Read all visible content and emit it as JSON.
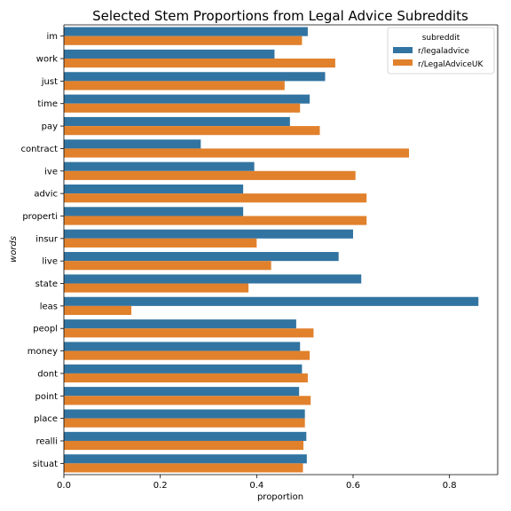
{
  "chart_data": {
    "type": "bar",
    "orientation": "horizontal",
    "title": "Selected Stem Proportions from Legal Advice Subreddits",
    "xlabel": "proportion",
    "ylabel": "words",
    "xlim": [
      0,
      0.9
    ],
    "xticks": [
      "0.0",
      "0.2",
      "0.4",
      "0.6",
      "0.8"
    ],
    "grid": false,
    "legend": {
      "title": "subreddit",
      "placement": "top-right"
    },
    "categories": [
      "im",
      "work",
      "just",
      "time",
      "pay",
      "contract",
      "ive",
      "advic",
      "properti",
      "insur",
      "live",
      "state",
      "leas",
      "peopl",
      "money",
      "dont",
      "point",
      "place",
      "realli",
      "situat"
    ],
    "series": [
      {
        "name": "r/legaladvice",
        "color": "#3274a1",
        "values": [
          0.506,
          0.437,
          0.542,
          0.51,
          0.469,
          0.284,
          0.395,
          0.372,
          0.372,
          0.6,
          0.57,
          0.617,
          0.86,
          0.482,
          0.49,
          0.494,
          0.488,
          0.5,
          0.503,
          0.504
        ]
      },
      {
        "name": "r/LegalAdviceUK",
        "color": "#e1812c",
        "values": [
          0.494,
          0.563,
          0.458,
          0.49,
          0.531,
          0.716,
          0.605,
          0.628,
          0.628,
          0.4,
          0.43,
          0.383,
          0.14,
          0.518,
          0.51,
          0.506,
          0.512,
          0.5,
          0.497,
          0.496
        ]
      }
    ]
  }
}
